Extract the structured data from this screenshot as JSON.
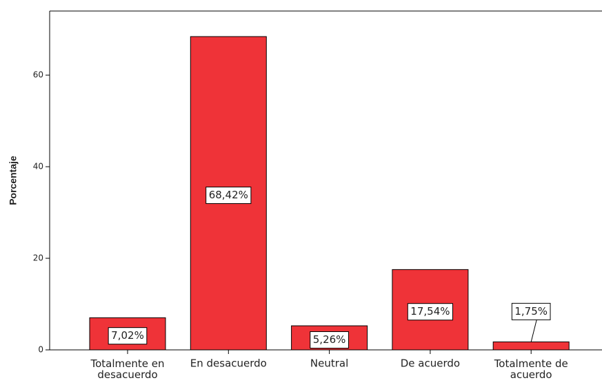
{
  "chart_data": {
    "type": "bar",
    "y_label": "Porcentaje",
    "categories": [
      "Totalmente en desacuerdo",
      "En desacuerdo",
      "Neutral",
      "De acuerdo",
      "Totalmente de acuerdo"
    ],
    "values": [
      7.02,
      68.42,
      5.26,
      17.54,
      1.75
    ],
    "value_labels": [
      "7,02%",
      "68,42%",
      "5,26%",
      "17,54%",
      "1,75%"
    ],
    "color": "#ef3338",
    "ylim": [
      0,
      74
    ],
    "yticks": [
      0,
      20,
      40,
      60
    ],
    "grid": false
  }
}
